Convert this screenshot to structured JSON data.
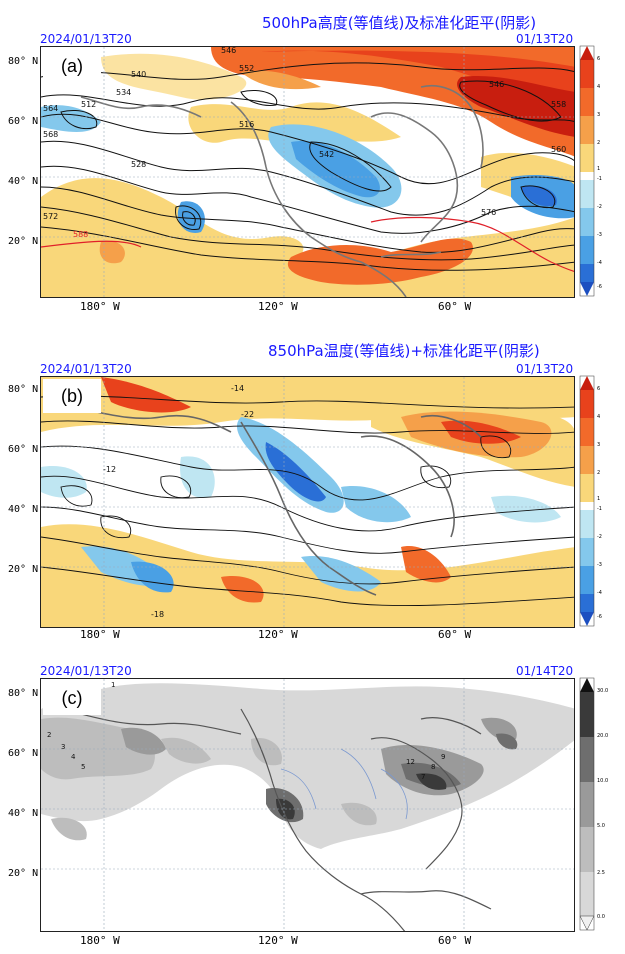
{
  "panels": [
    {
      "label": "(a)",
      "title": "500hPa高度(等值线)及标准化距平(阴影)",
      "date_left": "2024/01/13T20",
      "date_right": "01/13T20",
      "lat_labels": [
        "80° N",
        "60° N",
        "40° N",
        "20° N"
      ],
      "lon_labels": [
        "180° W",
        "120° W",
        "60° W"
      ],
      "colorbar": [
        "6",
        "4",
        "3",
        "2",
        "1",
        "-1",
        "-2",
        "-3",
        "-4",
        "-6"
      ],
      "contour_labels": [
        "546",
        "552",
        "540",
        "534",
        "564",
        "568",
        "512",
        "516",
        "528",
        "546",
        "572",
        "542",
        "558",
        "560",
        "576",
        "588"
      ]
    },
    {
      "label": "(b)",
      "title": "850hPa温度(等值线)+标准化距平(阴影)",
      "date_left": "2024/01/13T20",
      "date_right": "01/13T20",
      "lat_labels": [
        "80° N",
        "60° N",
        "40° N",
        "20° N"
      ],
      "lon_labels": [
        "180° W",
        "120° W",
        "60° W"
      ],
      "colorbar": [
        "6",
        "4",
        "3",
        "2",
        "1",
        "-1",
        "-2",
        "-3",
        "-4",
        "-6"
      ],
      "contour_labels": [
        "-14",
        "-22",
        "-12",
        "-18"
      ]
    },
    {
      "label": "(c)",
      "title": "",
      "date_left": "2024/01/13T20",
      "date_right": "01/14T20",
      "lat_labels": [
        "80° N",
        "60° N",
        "40° N",
        "20° N"
      ],
      "lon_labels": [
        "180° W",
        "120° W",
        "60° W"
      ],
      "colorbar": [
        "30.0",
        "20.0",
        "10.0",
        "5.0",
        "2.5",
        "0.0"
      ],
      "station_values": [
        "1",
        "2",
        "3",
        "4",
        "5",
        "7",
        "8",
        "9",
        "12"
      ]
    }
  ],
  "colors": {
    "title_blue": "#1a1aff",
    "anom_pos": [
      "#c81e0f",
      "#e8421c",
      "#f26a2a",
      "#f5a04a",
      "#f9d77a"
    ],
    "anom_neg": [
      "#bfe6f2",
      "#84c8ec",
      "#4aa0e4",
      "#2a6fd6",
      "#1d4fc0"
    ],
    "precip_gray": [
      "#f0f0f0",
      "#d8d8d8",
      "#bdbdbd",
      "#9a9a9a",
      "#6e6e6e",
      "#3a3a3a"
    ]
  }
}
